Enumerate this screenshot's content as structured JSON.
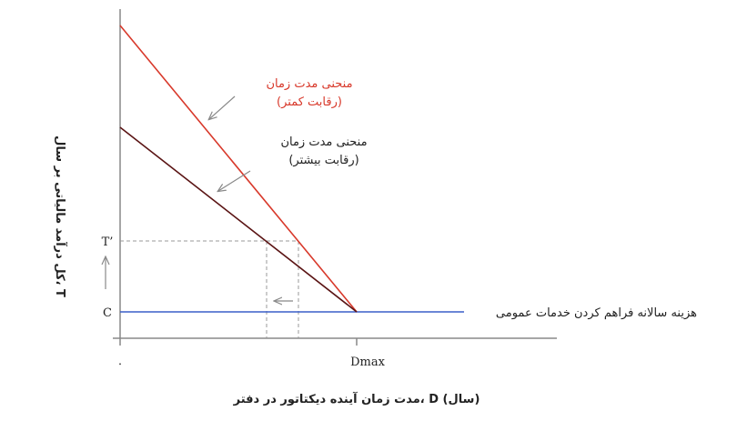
{
  "diagram": {
    "y_axis_title": "کل درآمد مالیاتی بر سال، T",
    "x_axis_title": "مدت زمان آینده دیکتاتور در دفتر، D (سال)",
    "x_tick_origin": "۰",
    "x_tick_dmax": "Dmax",
    "y_tick_t": "T’",
    "y_tick_c": "C",
    "curve_less_competition": {
      "line1": "منحنی مدت زمان",
      "line2": "(رقابت کمتر)",
      "color": "#d8392b"
    },
    "curve_more_competition": {
      "line1": "منحنی مدت زمان",
      "line2": "(رقابت بیشتر)",
      "color": "#5a1414"
    },
    "cost_line": {
      "label": "هزینه سالانه فراهم کردن خدمات عمومی",
      "color": "#3a5fc8"
    }
  }
}
